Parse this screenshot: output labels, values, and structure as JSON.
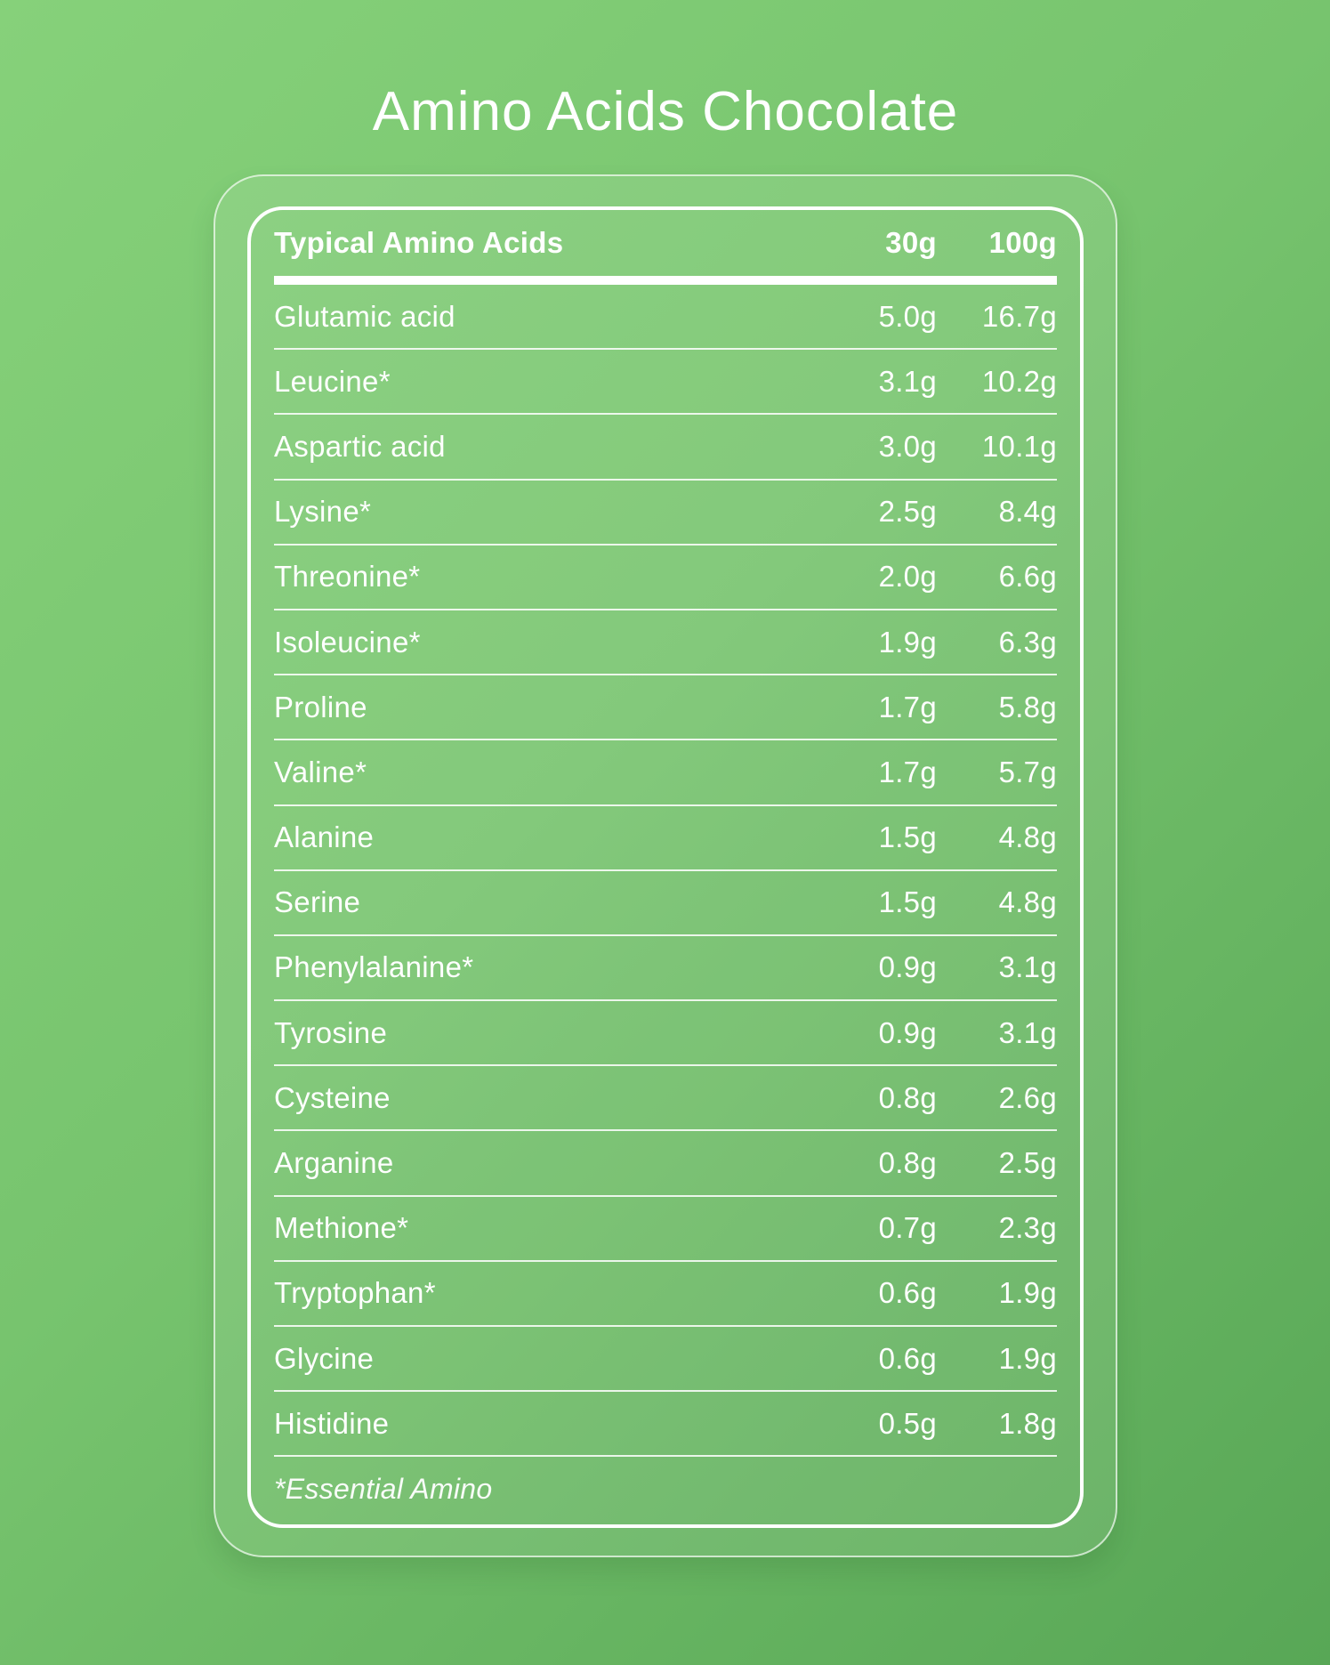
{
  "title": "Amino Acids Chocolate",
  "colors": {
    "background_gradient_start": "#86d17a",
    "background_gradient_end": "#58a756",
    "text": "#ffffff",
    "border": "#ffffff"
  },
  "table": {
    "header": {
      "name": "Typical Amino Acids",
      "col_30g": "30g",
      "col_100g": "100g"
    },
    "rows": [
      {
        "name": "Glutamic acid",
        "v30": "5.0g",
        "v100": "16.7g"
      },
      {
        "name": "Leucine*",
        "v30": "3.1g",
        "v100": "10.2g"
      },
      {
        "name": "Aspartic acid",
        "v30": "3.0g",
        "v100": "10.1g"
      },
      {
        "name": "Lysine*",
        "v30": "2.5g",
        "v100": "8.4g"
      },
      {
        "name": "Threonine*",
        "v30": "2.0g",
        "v100": "6.6g"
      },
      {
        "name": "Isoleucine*",
        "v30": "1.9g",
        "v100": "6.3g"
      },
      {
        "name": "Proline",
        "v30": "1.7g",
        "v100": "5.8g"
      },
      {
        "name": "Valine*",
        "v30": "1.7g",
        "v100": "5.7g"
      },
      {
        "name": "Alanine",
        "v30": "1.5g",
        "v100": "4.8g"
      },
      {
        "name": "Serine",
        "v30": "1.5g",
        "v100": "4.8g"
      },
      {
        "name": "Phenylalanine*",
        "v30": "0.9g",
        "v100": "3.1g"
      },
      {
        "name": "Tyrosine",
        "v30": "0.9g",
        "v100": "3.1g"
      },
      {
        "name": "Cysteine",
        "v30": "0.8g",
        "v100": "2.6g"
      },
      {
        "name": "Arganine",
        "v30": "0.8g",
        "v100": "2.5g"
      },
      {
        "name": "Methione*",
        "v30": "0.7g",
        "v100": "2.3g"
      },
      {
        "name": "Tryptophan*",
        "v30": "0.6g",
        "v100": "1.9g"
      },
      {
        "name": "Glycine",
        "v30": "0.6g",
        "v100": "1.9g"
      },
      {
        "name": "Histidine",
        "v30": "0.5g",
        "v100": "1.8g"
      }
    ],
    "footnote": "*Essential Amino"
  }
}
